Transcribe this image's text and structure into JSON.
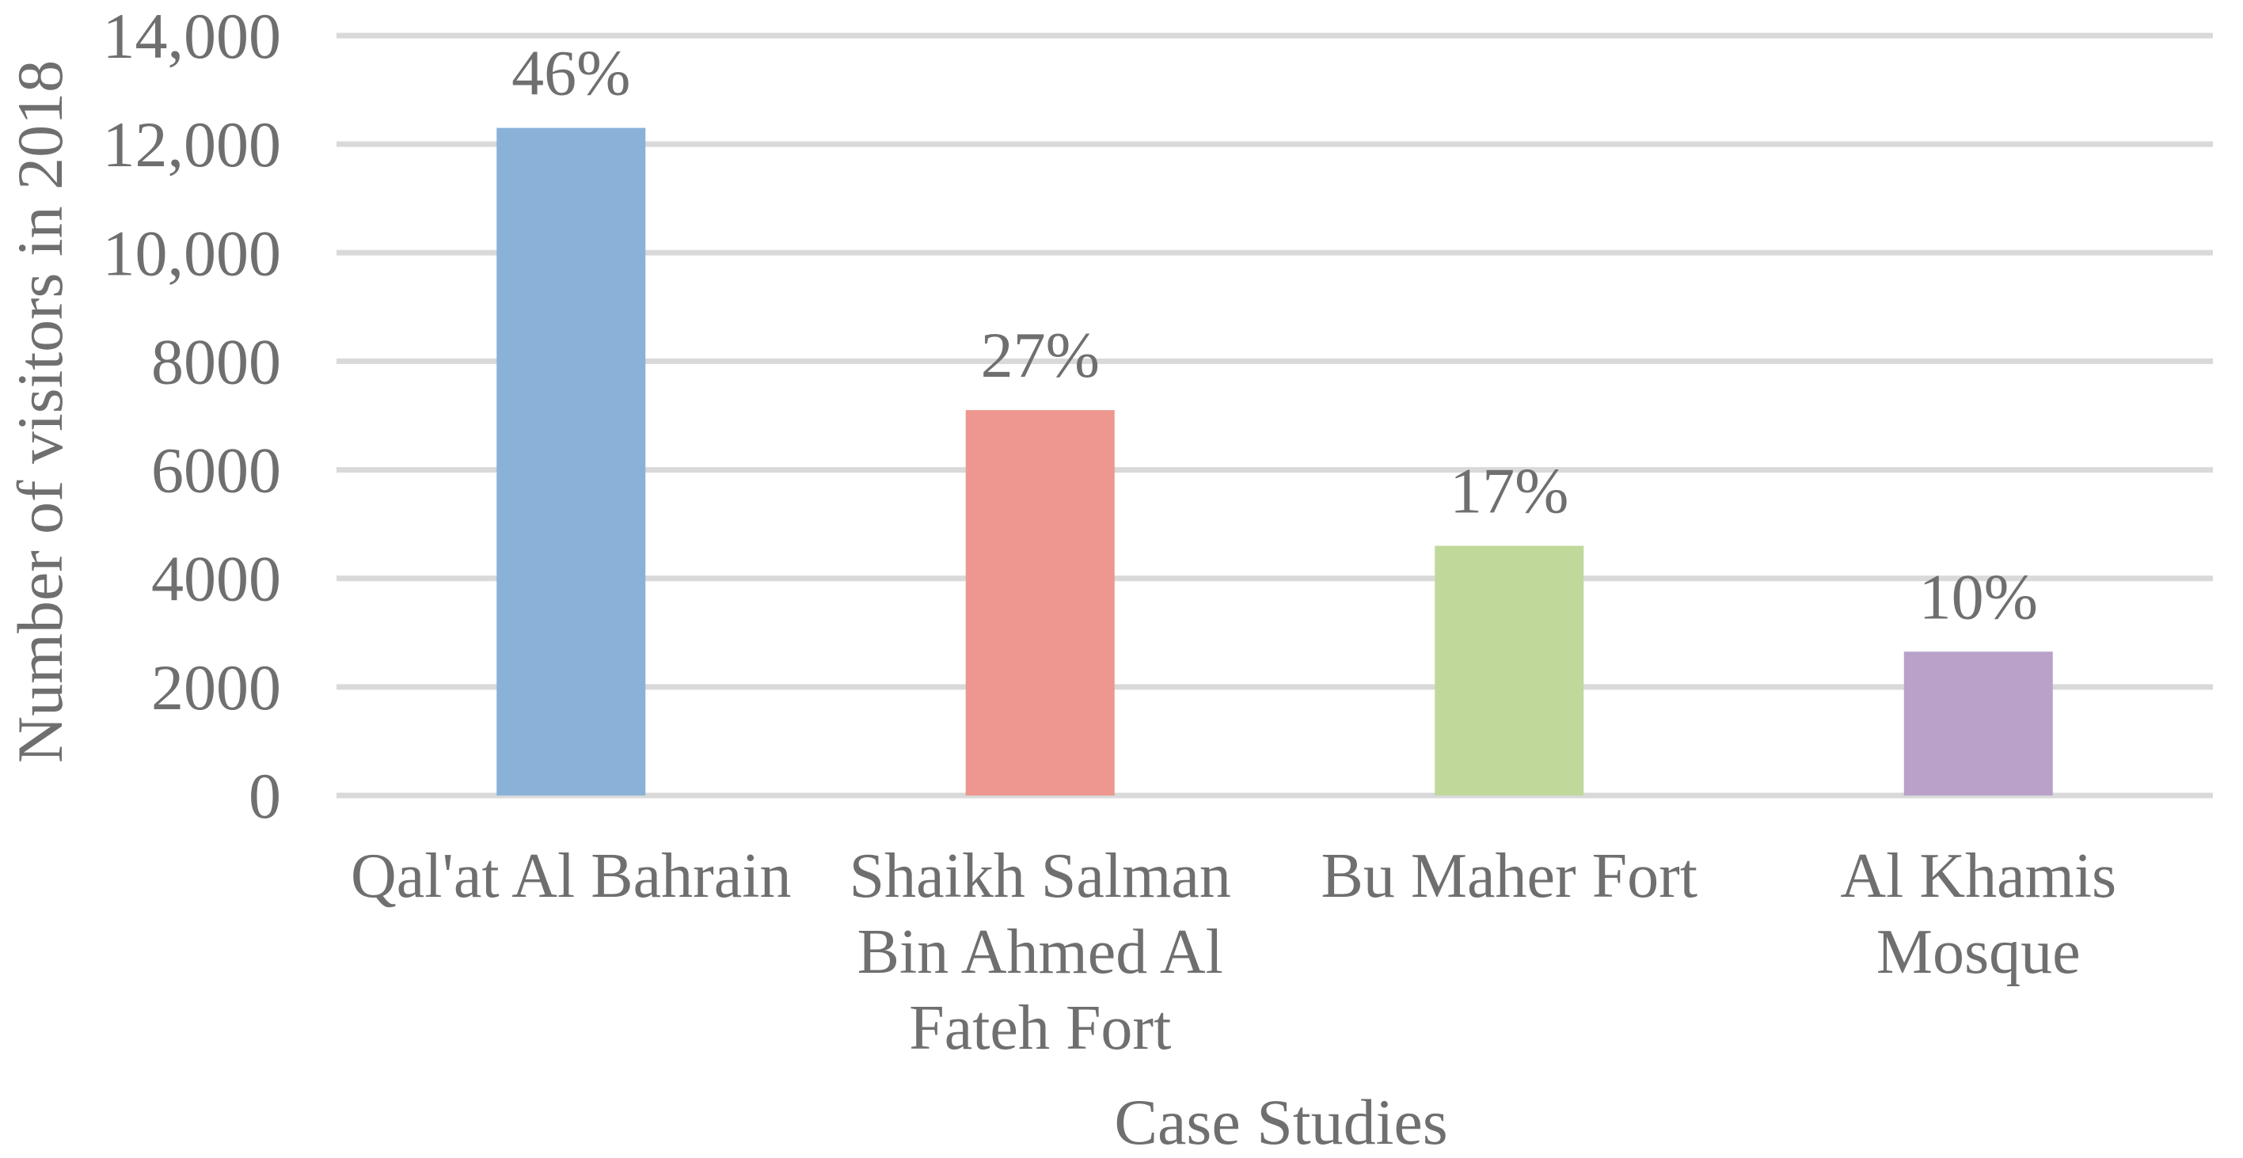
{
  "chart_data": {
    "type": "bar",
    "categories": [
      [
        "Qal'at Al Bahrain"
      ],
      [
        "Shaikh Salman",
        "Bin Ahmed Al",
        "Fateh Fort"
      ],
      [
        "Bu Maher Fort"
      ],
      [
        "Al Khamis",
        "Mosque"
      ]
    ],
    "values": [
      12300,
      7100,
      4600,
      2650
    ],
    "data_labels": [
      "46%",
      "27%",
      "17%",
      "10%"
    ],
    "colors": [
      "#8ab2d8",
      "#ee9690",
      "#c1d89b",
      "#baa1ca"
    ],
    "xlabel": "Case Studies",
    "ylabel": "Number of visitors in 2018",
    "ylim": [
      0,
      14000
    ],
    "yticks": [
      0,
      2000,
      4000,
      6000,
      8000,
      10000,
      12000,
      14000
    ],
    "ytick_labels": [
      "0",
      "2000",
      "4000",
      "6000",
      "8000",
      "10,000",
      "12,000",
      "14,000"
    ],
    "grid": true,
    "legend": "none"
  }
}
